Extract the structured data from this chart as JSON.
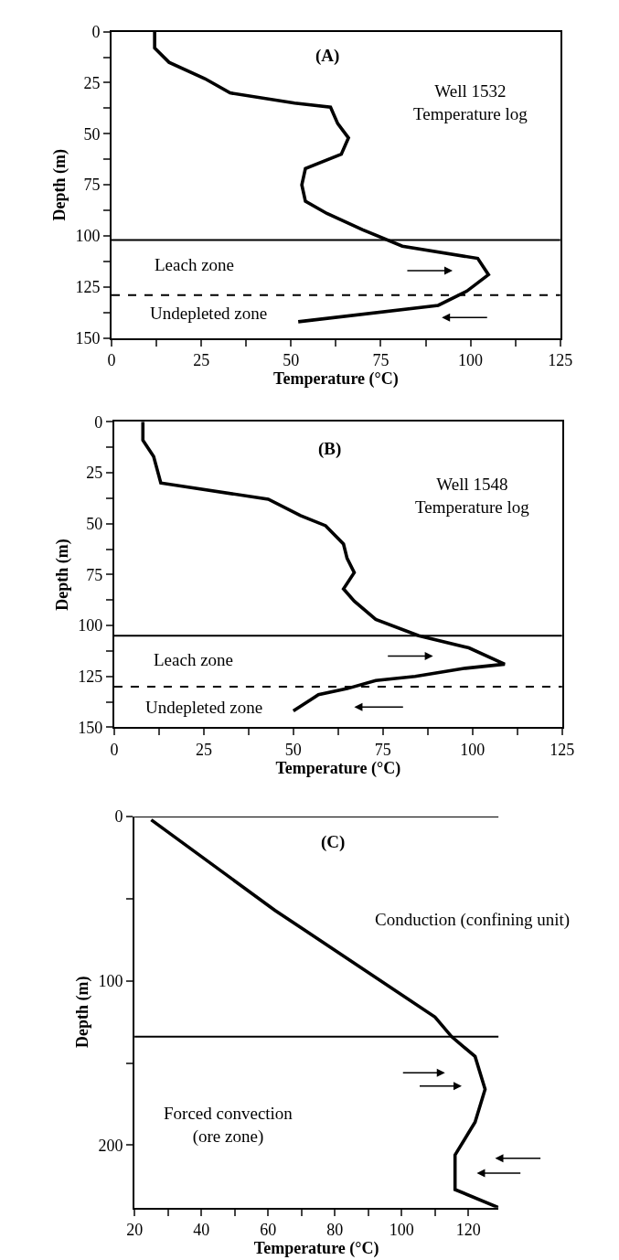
{
  "chart_data": [
    {
      "type": "line",
      "xlabel": "Temperature (°C)",
      "ylabel": "Depth (m)",
      "xlim": [
        0,
        125
      ],
      "ylim": [
        150,
        0
      ],
      "xticks": [
        0,
        {
          "value": 12.5,
          "label": null
        },
        25,
        {
          "value": 37.5,
          "label": null
        },
        50,
        {
          "value": 62.5,
          "label": null
        },
        75,
        {
          "value": 87.5,
          "label": null
        },
        100,
        {
          "value": 112.5,
          "label": null
        },
        125
      ],
      "yticks": [
        0,
        {
          "value": 12.5,
          "label": null
        },
        25,
        {
          "value": 37.5,
          "label": null
        },
        50,
        {
          "value": 62.5,
          "label": null
        },
        75,
        {
          "value": 87.5,
          "label": null
        },
        100,
        {
          "value": 112.5,
          "label": null
        },
        125,
        {
          "value": 137.5,
          "label": null
        },
        150
      ],
      "series": [
        {
          "color": "#000000",
          "x": [
            12,
            12,
            16,
            26,
            33,
            51,
            61,
            63,
            66,
            64,
            54,
            53,
            54,
            60,
            70,
            81,
            102,
            105,
            99,
            91,
            52
          ],
          "values": [
            0,
            8,
            15,
            23,
            30,
            35,
            37,
            45,
            52,
            60,
            67,
            75,
            83,
            89,
            97,
            105,
            111,
            119,
            127,
            134,
            142
          ]
        }
      ],
      "ref_lines": [
        {
          "axis": "y",
          "value": 102,
          "line_style": "solid",
          "color": "#000000"
        },
        {
          "axis": "y",
          "value": 129,
          "line_style": "dashed",
          "color": "#000000"
        }
      ],
      "annotations": [
        "(A)",
        "Well 1532\nTemperature log",
        "Leach zone",
        "Undepleted zone"
      ]
    },
    {
      "type": "line",
      "xlabel": "Temperature (°C)",
      "ylabel": "Depth (m)",
      "xlim": [
        0,
        125
      ],
      "ylim": [
        150,
        0
      ],
      "xticks": [
        0,
        {
          "value": 12.5,
          "label": null
        },
        25,
        {
          "value": 37.5,
          "label": null
        },
        50,
        {
          "value": 62.5,
          "label": null
        },
        75,
        {
          "value": 87.5,
          "label": null
        },
        100,
        {
          "value": 112.5,
          "label": null
        },
        125
      ],
      "yticks": [
        0,
        {
          "value": 12.5,
          "label": null
        },
        25,
        {
          "value": 37.5,
          "label": null
        },
        50,
        {
          "value": 62.5,
          "label": null
        },
        75,
        {
          "value": 87.5,
          "label": null
        },
        100,
        {
          "value": 112.5,
          "label": null
        },
        125,
        {
          "value": 137.5,
          "label": null
        },
        150
      ],
      "series": [
        {
          "color": "#000000",
          "x": [
            8,
            8,
            11,
            13,
            43,
            52,
            59,
            64,
            65,
            67,
            64,
            67,
            73,
            85,
            99,
            109,
            98,
            84,
            73,
            65,
            57,
            50
          ],
          "values": [
            0,
            9,
            17,
            30,
            38,
            46,
            51,
            60,
            67,
            74,
            82,
            88,
            97,
            105,
            111,
            119,
            121,
            125,
            127,
            131,
            134,
            142
          ]
        }
      ],
      "ref_lines": [
        {
          "axis": "y",
          "value": 105,
          "line_style": "solid",
          "color": "#000000"
        },
        {
          "axis": "y",
          "value": 130,
          "line_style": "dashed",
          "color": "#000000"
        }
      ],
      "annotations": [
        "(B)",
        "Well 1548\nTemperature log",
        "Leach zone",
        "Undepleted zone"
      ]
    },
    {
      "type": "line",
      "xlabel": "Temperature (°C)",
      "ylabel": "Depth (m)",
      "xlim": [
        20,
        129
      ],
      "ylim": [
        238,
        0
      ],
      "xticks": [
        20,
        {
          "value": 30,
          "label": null
        },
        40,
        {
          "value": 50,
          "label": null
        },
        60,
        {
          "value": 70,
          "label": null
        },
        80,
        {
          "value": 90,
          "label": null
        },
        100,
        {
          "value": 110,
          "label": null
        },
        120
      ],
      "yticks": [
        0,
        {
          "value": 50,
          "label": null
        },
        100,
        {
          "value": 150,
          "label": null
        },
        200
      ],
      "series": [
        {
          "color": "#000000",
          "x": [
            25,
            62,
            110,
            115,
            122,
            125,
            122,
            116,
            116,
            129
          ],
          "values": [
            2,
            57,
            122,
            134,
            146,
            166,
            186,
            206,
            227,
            238
          ]
        }
      ],
      "ref_lines": [
        {
          "axis": "y",
          "value": 0,
          "line_style": "solid",
          "color": "#000000"
        },
        {
          "axis": "y",
          "value": 134,
          "line_style": "solid",
          "color": "#000000"
        }
      ],
      "annotations": [
        "(C)",
        "Conduction (confining unit)",
        "Forced convection\n(ore zone)"
      ]
    }
  ]
}
